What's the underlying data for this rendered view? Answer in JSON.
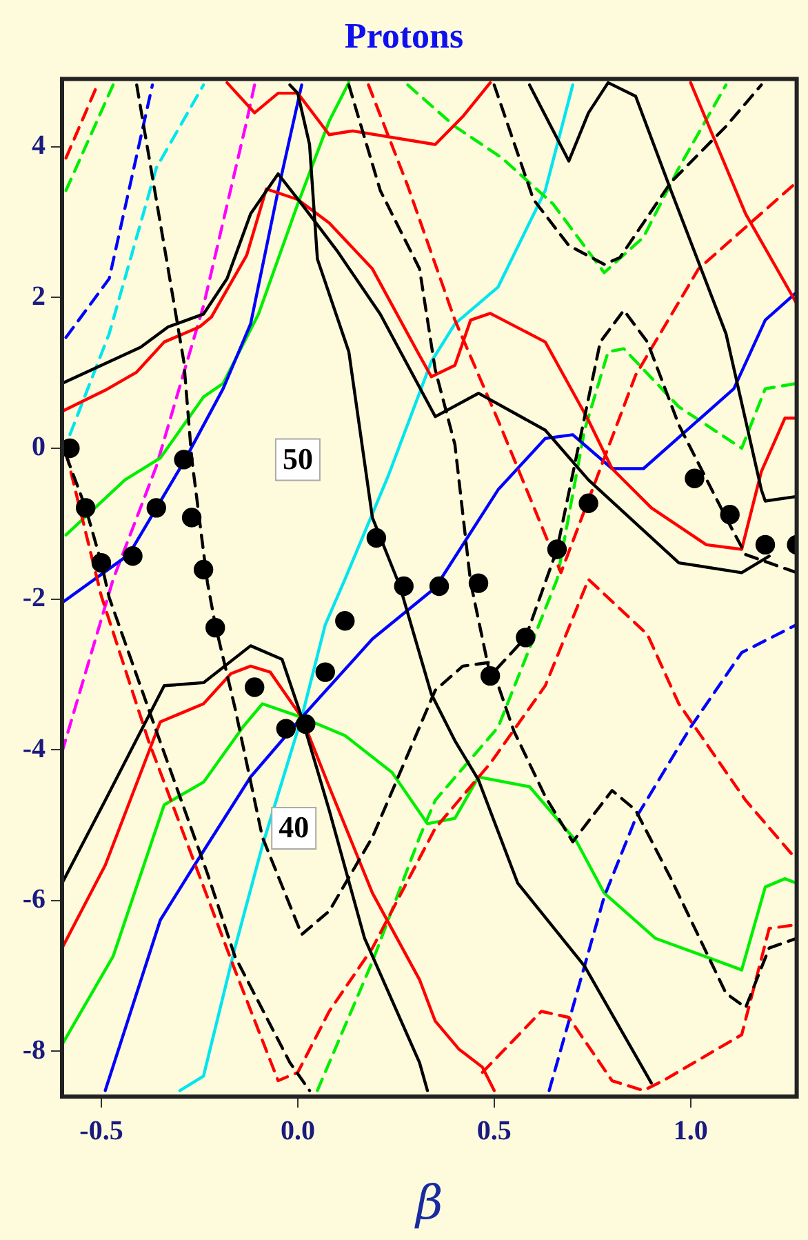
{
  "chart_data": {
    "type": "line",
    "title": "Protons",
    "xlabel": "β",
    "xlim": [
      -0.6,
      1.27
    ],
    "ylim": [
      -8.6,
      4.9
    ],
    "xticks": [
      {
        "value": -0.5,
        "label": "-0.5"
      },
      {
        "value": 0,
        "label": "0.0"
      },
      {
        "value": 0.5,
        "label": "0.5"
      },
      {
        "value": 1,
        "label": "1.0"
      }
    ],
    "yticks": [
      -8,
      -6,
      -4,
      -2,
      0,
      2,
      4
    ],
    "grid": false,
    "legend": false,
    "marker": "none",
    "annotations": [
      {
        "text": "50",
        "x": 0.0,
        "y": -0.15
      },
      {
        "text": "40",
        "x": -0.01,
        "y": -5.04
      }
    ],
    "series": [
      {
        "color": "#000000",
        "line_style": "solid",
        "x": [
          -0.6,
          -0.5,
          -0.4,
          -0.33,
          -0.24,
          -0.18,
          -0.12,
          -0.05,
          0.01,
          0.1,
          0.21,
          0.35,
          0.46,
          0.63,
          0.74,
          0.97,
          1.13,
          1.2
        ],
        "values": [
          0.86,
          1.1,
          1.34,
          1.61,
          1.78,
          2.25,
          3.11,
          3.64,
          3.24,
          2.62,
          1.78,
          0.42,
          0.73,
          0.24,
          -0.42,
          -1.52,
          -1.65,
          -1.43
        ]
      },
      {
        "color": "#000000",
        "line_style": "solid",
        "x": [
          -0.02,
          0.0,
          0.03,
          0.05,
          0.13,
          0.19,
          0.26,
          0.34,
          0.4,
          0.46,
          0.56,
          0.73,
          0.9
        ],
        "values": [
          4.82,
          4.71,
          4.03,
          2.51,
          1.28,
          -0.92,
          -1.83,
          -3.26,
          -3.88,
          -4.4,
          -5.77,
          -6.87,
          -8.42
        ]
      },
      {
        "color": "#000000",
        "line_style": "solid",
        "x": [
          -0.6,
          -0.49,
          -0.34,
          -0.24,
          -0.12,
          -0.04,
          0.01,
          0.08,
          0.17,
          0.31,
          0.33
        ],
        "values": [
          -5.77,
          -4.67,
          -3.15,
          -3.11,
          -2.62,
          -2.8,
          -3.57,
          -4.8,
          -6.5,
          -8.15,
          -8.52
        ]
      },
      {
        "color": "#000000",
        "line_style": "solid",
        "x": [
          0.59,
          0.69,
          0.74,
          0.79,
          0.86,
          0.95,
          1.09,
          1.18,
          1.19,
          1.27
        ],
        "values": [
          4.82,
          3.81,
          4.45,
          4.85,
          4.67,
          3.42,
          1.52,
          -0.55,
          -0.7,
          -0.64
        ]
      },
      {
        "color": "#000000",
        "line_style": "dashed",
        "x": [
          0.5,
          0.6,
          0.69,
          0.78,
          0.82,
          0.95,
          1.09,
          1.18
        ],
        "values": [
          4.82,
          3.3,
          2.69,
          2.44,
          2.53,
          3.53,
          4.27,
          4.82
        ]
      },
      {
        "color": "#000000",
        "line_style": "dashed",
        "x": [
          -0.41,
          -0.33,
          -0.29,
          -0.27,
          -0.23,
          -0.21,
          -0.16,
          -0.09,
          0.01,
          0.08,
          0.19,
          0.35,
          0.42,
          0.49,
          0.55,
          0.63,
          0.7,
          0.8,
          0.86,
          0.95,
          1.09,
          1.14,
          1.2,
          1.27
        ],
        "values": [
          4.82,
          2.38,
          1.15,
          -0.13,
          -1.78,
          -2.34,
          -3.44,
          -5.16,
          -6.45,
          -6.14,
          -5.16,
          -3.21,
          -2.89,
          -2.84,
          -3.75,
          -4.62,
          -5.22,
          -4.54,
          -4.8,
          -5.71,
          -7.23,
          -7.42,
          -6.63,
          -6.5
        ]
      },
      {
        "color": "#000000",
        "line_style": "dashed",
        "x": [
          -0.59,
          -0.54,
          -0.5,
          -0.48,
          -0.36,
          -0.23,
          -0.16,
          -0.02,
          0.03
        ],
        "values": [
          -0.09,
          -0.79,
          -1.52,
          -1.98,
          -3.75,
          -5.64,
          -6.74,
          -8.15,
          -8.52
        ]
      },
      {
        "color": "#000000",
        "line_style": "dashed",
        "x": [
          0.13,
          0.21,
          0.31,
          0.35,
          0.4,
          0.44,
          0.49,
          0.58,
          0.66,
          0.77,
          0.83,
          0.89,
          0.97,
          1.09,
          1.14,
          1.27
        ],
        "values": [
          4.82,
          3.42,
          2.38,
          1.04,
          0.05,
          -1.78,
          -3.02,
          -2.51,
          -1.34,
          1.41,
          1.83,
          1.41,
          0.31,
          -0.92,
          -1.41,
          -1.65
        ]
      },
      {
        "color": "#ff0000",
        "line_style": "solid",
        "x": [
          -0.6,
          -0.49,
          -0.41,
          -0.34,
          -0.25,
          -0.22,
          -0.13,
          -0.08,
          0.0,
          0.08,
          0.19,
          0.31,
          0.34,
          0.4,
          0.44,
          0.49,
          0.63,
          0.74,
          0.8,
          0.9,
          1.04,
          1.13,
          1.18,
          1.24,
          1.27
        ],
        "values": [
          0.49,
          0.77,
          1.01,
          1.41,
          1.61,
          1.74,
          2.56,
          3.44,
          3.3,
          2.99,
          2.38,
          1.23,
          0.95,
          1.1,
          1.7,
          1.79,
          1.41,
          0.37,
          -0.27,
          -0.79,
          -1.28,
          -1.34,
          -0.31,
          0.4,
          0.4
        ]
      },
      {
        "color": "#ff0000",
        "line_style": "solid",
        "x": [
          -0.18,
          -0.11,
          -0.05,
          0.0,
          0.08,
          0.14,
          0.35,
          0.42,
          0.49
        ],
        "values": [
          4.85,
          4.45,
          4.71,
          4.71,
          4.16,
          4.21,
          4.03,
          4.4,
          4.85
        ]
      },
      {
        "color": "#ff0000",
        "line_style": "solid",
        "x": [
          1.0,
          1.14,
          1.27
        ],
        "values": [
          4.85,
          3.11,
          1.92
        ]
      },
      {
        "color": "#ff0000",
        "line_style": "solid",
        "x": [
          -0.6,
          -0.49,
          -0.35,
          -0.24,
          -0.17,
          -0.12,
          -0.07,
          0.01,
          0.08,
          0.19,
          0.31,
          0.35,
          0.41,
          0.47,
          0.5
        ],
        "values": [
          -6.63,
          -5.53,
          -3.63,
          -3.39,
          -2.99,
          -2.89,
          -2.97,
          -3.57,
          -4.49,
          -5.9,
          -7.05,
          -7.6,
          -7.97,
          -8.21,
          -8.52
        ]
      },
      {
        "color": "#ff0000",
        "line_style": "dashed",
        "x": [
          -0.59,
          -0.51
        ],
        "values": [
          3.85,
          4.82
        ]
      },
      {
        "color": "#ff0000",
        "line_style": "dashed",
        "x": [
          -0.59,
          -0.5,
          -0.38,
          -0.27,
          -0.16,
          -0.05,
          0.0,
          0.08,
          0.19,
          0.35,
          0.49,
          0.63,
          0.74,
          0.89,
          0.97,
          1.14,
          1.27
        ],
        "values": [
          -0.05,
          -1.96,
          -3.88,
          -5.4,
          -6.92,
          -8.39,
          -8.28,
          -7.47,
          -6.63,
          -5.04,
          -4.18,
          -3.15,
          -1.74,
          -2.47,
          -3.39,
          -4.67,
          -5.46
        ]
      },
      {
        "color": "#ff0000",
        "line_style": "dashed",
        "x": [
          0.18,
          0.28,
          0.4,
          0.51,
          0.63,
          0.67,
          0.86,
          1.02,
          1.27
        ],
        "values": [
          4.82,
          3.48,
          1.7,
          0.37,
          -1.15,
          -1.65,
          0.97,
          2.38,
          3.53
        ]
      },
      {
        "color": "#ff0000",
        "line_style": "dashed",
        "x": [
          0.47,
          0.62,
          0.69,
          0.8,
          0.88,
          0.93,
          1.13,
          1.2,
          1.27
        ],
        "values": [
          -8.28,
          -7.47,
          -7.55,
          -8.39,
          -8.52,
          -8.39,
          -7.78,
          -6.37,
          -6.32
        ]
      },
      {
        "color": "#0000ff",
        "line_style": "solid",
        "x": [
          -0.6,
          -0.43,
          -0.29,
          -0.19,
          -0.12,
          -0.05,
          0.01
        ],
        "values": [
          -2.05,
          -1.41,
          -0.18,
          0.79,
          1.65,
          3.42,
          4.82
        ]
      },
      {
        "color": "#0000ff",
        "line_style": "solid",
        "x": [
          -0.49,
          -0.35,
          -0.27,
          -0.12,
          0.01,
          0.19,
          0.35,
          0.51,
          0.63,
          0.7,
          0.8,
          0.88,
          1.11,
          1.19,
          1.27
        ],
        "values": [
          -8.52,
          -6.26,
          -5.59,
          -4.36,
          -3.57,
          -2.53,
          -1.85,
          -0.55,
          0.13,
          0.18,
          -0.27,
          -0.27,
          0.79,
          1.7,
          2.07
        ]
      },
      {
        "color": "#0000ff",
        "line_style": "dashed",
        "x": [
          -0.59,
          -0.48,
          -0.37
        ],
        "values": [
          1.47,
          2.25,
          4.82
        ]
      },
      {
        "color": "#0000ff",
        "line_style": "dashed",
        "x": [
          0.64,
          0.78,
          0.86,
          1.0,
          1.13,
          1.27
        ],
        "values": [
          -8.52,
          -5.95,
          -4.91,
          -3.7,
          -2.71,
          -2.34
        ]
      },
      {
        "color": "#00ee00",
        "line_style": "solid",
        "x": [
          -0.59,
          -0.44,
          -0.35,
          -0.24,
          -0.19,
          -0.1,
          0.0,
          0.08,
          0.13
        ],
        "values": [
          -1.15,
          -0.42,
          -0.13,
          0.68,
          0.86,
          1.78,
          3.24,
          4.34,
          4.85
        ]
      },
      {
        "color": "#00ee00",
        "line_style": "solid",
        "x": [
          -0.6,
          -0.47,
          -0.34,
          -0.24,
          -0.14,
          -0.09,
          0.01,
          0.12,
          0.24,
          0.33,
          0.4,
          0.46,
          0.59,
          0.71,
          0.78,
          0.91,
          1.13,
          1.19,
          1.24,
          1.27
        ],
        "values": [
          -7.91,
          -6.74,
          -4.73,
          -4.43,
          -3.7,
          -3.39,
          -3.57,
          -3.81,
          -4.3,
          -4.98,
          -4.91,
          -4.36,
          -4.49,
          -5.22,
          -5.9,
          -6.5,
          -6.92,
          -5.82,
          -5.71,
          -5.77
        ]
      },
      {
        "color": "#00ee00",
        "line_style": "dashed",
        "x": [
          0.28,
          0.4,
          0.52,
          0.65,
          0.78,
          0.88,
          0.97,
          1.09
        ],
        "values": [
          4.82,
          4.27,
          3.85,
          3.24,
          2.33,
          2.8,
          3.72,
          4.82
        ]
      },
      {
        "color": "#00ee00",
        "line_style": "dashed",
        "x": [
          0.05,
          0.19,
          0.31,
          0.35,
          0.51,
          0.66,
          0.73,
          0.79,
          0.83,
          0.97,
          1.13,
          1.19,
          1.27
        ],
        "values": [
          -8.52,
          -6.81,
          -5.16,
          -4.67,
          -3.7,
          -1.74,
          0.24,
          1.28,
          1.32,
          0.55,
          0.0,
          0.79,
          0.86
        ]
      },
      {
        "color": "#00ee00",
        "line_style": "dashed",
        "x": [
          -0.59,
          -0.47
        ],
        "values": [
          3.42,
          4.82
        ]
      },
      {
        "color": "#00e5ee",
        "line_style": "solid",
        "x": [
          -0.3,
          -0.24,
          -0.16,
          -0.09,
          0.01,
          0.07,
          0.12,
          0.23,
          0.34,
          0.4,
          0.51,
          0.63,
          0.7
        ],
        "values": [
          -8.52,
          -8.33,
          -6.63,
          -5.27,
          -3.57,
          -2.34,
          -1.74,
          -0.37,
          1.15,
          1.65,
          2.14,
          3.42,
          4.82
        ]
      },
      {
        "color": "#00e5ee",
        "line_style": "dashed",
        "x": [
          -0.58,
          -0.48,
          -0.36,
          -0.24
        ],
        "values": [
          0.18,
          1.52,
          3.72,
          4.82
        ]
      },
      {
        "color": "#ff00ff",
        "line_style": "dashed",
        "x": [
          -0.6,
          -0.47,
          -0.36,
          -0.24,
          -0.13,
          -0.11
        ],
        "values": [
          -4.03,
          -1.74,
          -0.24,
          1.89,
          4.34,
          4.82
        ]
      },
      {
        "type": "scatter",
        "marker": "circle",
        "color": "#000000",
        "x": [
          -0.58,
          -0.54,
          -0.5,
          -0.42,
          -0.36,
          -0.29,
          -0.27,
          -0.24,
          -0.21,
          -0.11,
          -0.03,
          0.02,
          0.07,
          0.12,
          0.2,
          0.27,
          0.36,
          0.46,
          0.49,
          0.58,
          0.66,
          0.74,
          1.01,
          1.1,
          1.19,
          1.27
        ],
        "values": [
          0.0,
          -0.79,
          -1.52,
          -1.43,
          -0.79,
          -0.15,
          -0.92,
          -1.61,
          -2.38,
          -3.17,
          -3.72,
          -3.66,
          -2.97,
          -2.29,
          -1.19,
          -1.83,
          -1.83,
          -1.79,
          -3.02,
          -2.51,
          -1.34,
          -0.73,
          -0.4,
          -0.88,
          -1.28,
          -1.28
        ]
      }
    ]
  }
}
